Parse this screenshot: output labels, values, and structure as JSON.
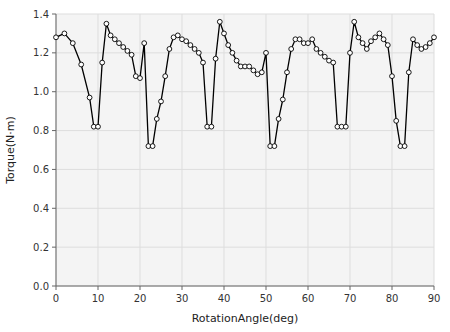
{
  "chart_data": {
    "type": "line",
    "xlabel": "RotationAngle(deg)",
    "ylabel": "Torque(N·m)",
    "x": [
      0,
      2,
      4,
      6,
      8,
      9,
      10,
      11,
      12,
      13,
      14,
      15,
      16,
      17,
      18,
      19,
      20,
      21,
      22,
      23,
      24,
      25,
      26,
      27,
      28,
      29,
      30,
      31,
      32,
      33,
      34,
      35,
      36,
      37,
      38,
      39,
      40,
      41,
      42,
      43,
      44,
      45,
      46,
      47,
      48,
      49,
      50,
      51,
      52,
      53,
      54,
      55,
      56,
      57,
      58,
      59,
      60,
      61,
      62,
      63,
      64,
      65,
      66,
      67,
      68,
      69,
      70,
      71,
      72,
      73,
      74,
      75,
      76,
      77,
      78,
      79,
      80,
      81,
      82,
      83,
      84,
      85,
      86,
      87,
      88,
      89,
      90
    ],
    "values": [
      1.28,
      1.3,
      1.25,
      1.14,
      0.97,
      0.82,
      0.82,
      1.15,
      1.35,
      1.29,
      1.27,
      1.25,
      1.23,
      1.21,
      1.19,
      1.08,
      1.07,
      1.25,
      0.72,
      0.72,
      0.86,
      0.95,
      1.08,
      1.22,
      1.28,
      1.29,
      1.27,
      1.26,
      1.24,
      1.22,
      1.2,
      1.15,
      0.82,
      0.82,
      1.17,
      1.36,
      1.3,
      1.24,
      1.2,
      1.16,
      1.13,
      1.13,
      1.13,
      1.11,
      1.09,
      1.1,
      1.2,
      0.72,
      0.72,
      0.86,
      0.96,
      1.1,
      1.22,
      1.27,
      1.27,
      1.25,
      1.25,
      1.27,
      1.22,
      1.2,
      1.18,
      1.16,
      1.15,
      0.82,
      0.82,
      0.82,
      1.2,
      1.36,
      1.28,
      1.25,
      1.22,
      1.26,
      1.28,
      1.3,
      1.27,
      1.24,
      1.08,
      0.85,
      0.72,
      0.72,
      1.1,
      1.27,
      1.24,
      1.22,
      1.23,
      1.25,
      1.28
    ],
    "xlim": [
      0,
      90
    ],
    "ylim": [
      0.0,
      1.4
    ],
    "xticks": [
      0,
      10,
      20,
      30,
      40,
      50,
      60,
      70,
      80,
      90
    ],
    "yticks": [
      {
        "value": 0.0,
        "label": "0.0"
      },
      0.2,
      0.4,
      0.6,
      0.8,
      {
        "value": 1.0,
        "label": "1.0"
      },
      1.2,
      1.4
    ],
    "color": "#000000",
    "marker": "circle",
    "grid": true
  }
}
